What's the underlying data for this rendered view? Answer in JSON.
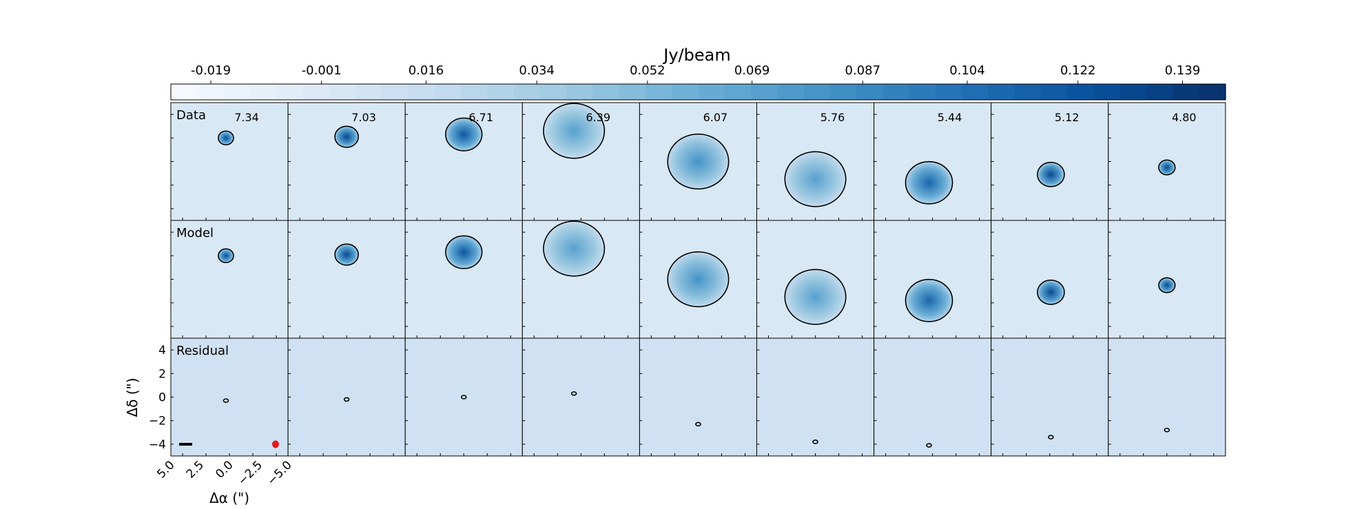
{
  "colorbar": {
    "label": "Jy/beam",
    "ticks": [
      "-0.019",
      "-0.001",
      "0.016",
      "0.034",
      "0.052",
      "0.069",
      "0.087",
      "0.104",
      "0.122",
      "0.139"
    ],
    "tick_values": [
      -0.019,
      -0.001,
      0.016,
      0.034,
      0.052,
      0.069,
      0.087,
      0.104,
      0.122,
      0.139
    ],
    "range": [
      -0.0255,
      0.146
    ],
    "colormap": "Blues",
    "n_levels": 40
  },
  "colors": {
    "contour": "#000000",
    "negative_contour": "#e41a1c",
    "beam": "#e41a1c",
    "scale_bar": "#000000"
  },
  "chart_data": {
    "type": "heatmap",
    "description_rows": [
      "Data",
      "Model",
      "Residual"
    ],
    "velocity_labels": [
      "7.34",
      "7.03",
      "6.71",
      "6.39",
      "6.07",
      "5.76",
      "5.44",
      "5.12",
      "4.80"
    ],
    "xlabel": "Δα (\")",
    "ylabel": "Δδ (\")",
    "x_ticks": [
      "5.0",
      "2.5",
      "0.0",
      "−2.5",
      "−5.0"
    ],
    "y_ticks": [
      "4",
      "2",
      "0",
      "−2",
      "−4"
    ],
    "xlim": [
      5.0,
      -5.0
    ],
    "ylim": [
      -5.0,
      5.0
    ],
    "emission_channels": [
      {
        "cx": 0.3,
        "cy": 2.0,
        "r": 0.65,
        "peak": 0.125
      },
      {
        "cx": 0.0,
        "cy": 2.1,
        "r": 1.0,
        "peak": 0.13
      },
      {
        "cx": 0.0,
        "cy": 2.3,
        "r": 1.55,
        "peak": 0.12
      },
      {
        "cx": 0.6,
        "cy": 2.6,
        "r": 2.6,
        "peak": 0.07
      },
      {
        "cx": 0.0,
        "cy": 0.0,
        "r": 2.6,
        "peak": 0.08
      },
      {
        "cx": 0.0,
        "cy": -1.5,
        "r": 2.6,
        "peak": 0.07
      },
      {
        "cx": 0.3,
        "cy": -1.8,
        "r": 2.0,
        "peak": 0.11
      },
      {
        "cx": -0.1,
        "cy": -1.1,
        "r": 1.15,
        "peak": 0.13
      },
      {
        "cx": 0.0,
        "cy": -0.5,
        "r": 0.7,
        "peak": 0.13
      }
    ]
  }
}
